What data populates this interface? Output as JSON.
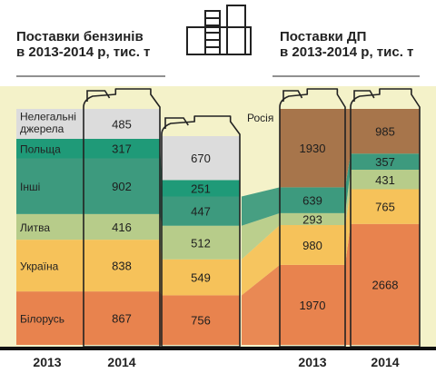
{
  "colors": {
    "band_bg": "#f4f2c9",
    "canister_stroke": "#222222",
    "label_text": "#222222",
    "bottom_rule": "#111111"
  },
  "icon": "refinery-icon",
  "chart_data": [
    {
      "type": "area",
      "title": "Поставки бензинів\nв 2013-2014 р, тис. т",
      "x": [
        "2013",
        "2014",
        "2014"
      ],
      "x_tick_labels": [
        "2013",
        "2014"
      ],
      "stack_order": "bottom-to-top",
      "series": [
        {
          "name": "Білорусь",
          "color": "#e8834e",
          "values": [
            null,
            867,
            756
          ]
        },
        {
          "name": "Україна",
          "color": "#f6c25a",
          "values": [
            null,
            838,
            549
          ]
        },
        {
          "name": "Литва",
          "color": "#b7cc8a",
          "values": [
            null,
            416,
            512
          ]
        },
        {
          "name": "Інші",
          "color": "#3d9a7e",
          "values": [
            null,
            902,
            447
          ]
        },
        {
          "name": "Польща",
          "color": "#1f9a78",
          "values": [
            null,
            317,
            251
          ]
        },
        {
          "name": "Нелегальні\nджерела",
          "color": "#dcdcdc",
          "values": [
            null,
            485,
            670
          ]
        }
      ]
    },
    {
      "type": "area",
      "title": "Поставки ДП\nв 2013-2014 р, тис. т",
      "x": [
        "2013",
        "2014"
      ],
      "stack_order": "bottom-to-top",
      "series": [
        {
          "color": "#e8834e",
          "values": [
            1970,
            2668
          ]
        },
        {
          "color": "#f6c25a",
          "values": [
            980,
            765
          ]
        },
        {
          "color": "#b7cc8a",
          "values": [
            293,
            431
          ]
        },
        {
          "color": "#3d9a7e",
          "values": [
            639,
            357
          ]
        },
        {
          "name": "Росія",
          "color": "#a7754b",
          "values": [
            1930,
            985
          ]
        }
      ]
    }
  ]
}
